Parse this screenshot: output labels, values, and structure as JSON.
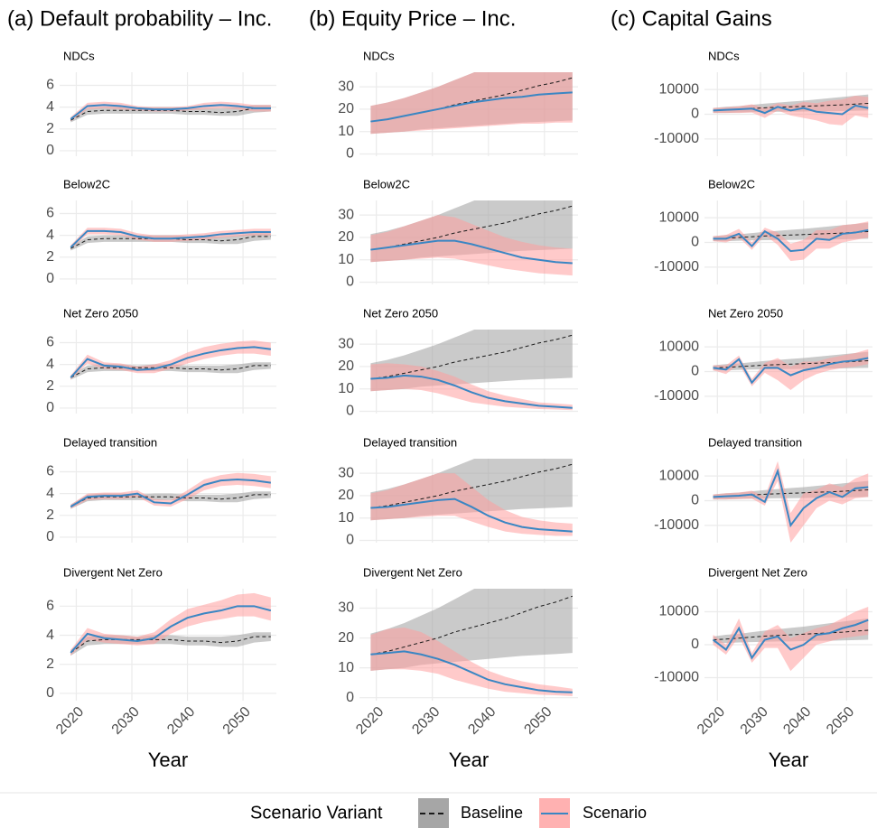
{
  "legend": {
    "title": "Scenario Variant",
    "series": [
      {
        "name": "Baseline",
        "color": "#1a1a1a",
        "fill": "#a6a6a6",
        "linestyle": "dashed"
      },
      {
        "name": "Scenario",
        "color": "#3a86c3",
        "fill": "#ff9e9e",
        "linestyle": "solid"
      }
    ]
  },
  "chart_data": [
    {
      "type": "line",
      "title": "(a)  Default probability – Inc.",
      "xlabel": "Year",
      "grid": true,
      "x": [
        2019,
        2022,
        2025,
        2028,
        2031,
        2034,
        2037,
        2040,
        2043,
        2046,
        2049,
        2052,
        2055
      ],
      "xlim": [
        2017,
        2056
      ],
      "xticks": [
        2020,
        2030,
        2040,
        2050
      ],
      "ylim": [
        -0.5,
        7.2
      ],
      "yticks": [
        0,
        2,
        4,
        6
      ],
      "baseline": {
        "values": [
          2.8,
          3.6,
          3.7,
          3.7,
          3.7,
          3.7,
          3.7,
          3.6,
          3.6,
          3.5,
          3.6,
          3.9,
          3.9
        ],
        "lower": [
          2.6,
          3.3,
          3.4,
          3.4,
          3.4,
          3.4,
          3.4,
          3.3,
          3.3,
          3.2,
          3.2,
          3.5,
          3.6
        ],
        "upper": [
          3.0,
          3.9,
          4.0,
          4.0,
          3.9,
          4.0,
          4.0,
          3.9,
          3.9,
          3.9,
          4.0,
          4.2,
          4.2
        ]
      },
      "panels": [
        {
          "facet": "NDCs",
          "values": [
            2.9,
            4.1,
            4.2,
            4.1,
            3.9,
            3.8,
            3.8,
            3.9,
            4.1,
            4.2,
            4.1,
            3.9,
            3.9
          ],
          "lower": [
            2.7,
            3.8,
            3.9,
            3.8,
            3.7,
            3.6,
            3.6,
            3.7,
            3.8,
            3.9,
            3.8,
            3.6,
            3.6
          ],
          "upper": [
            3.1,
            4.4,
            4.5,
            4.4,
            4.1,
            4.0,
            4.0,
            4.1,
            4.4,
            4.5,
            4.4,
            4.2,
            4.2
          ]
        },
        {
          "facet": "Below2C",
          "values": [
            2.9,
            4.4,
            4.4,
            4.3,
            3.9,
            3.7,
            3.7,
            3.8,
            3.9,
            4.1,
            4.2,
            4.3,
            4.3
          ],
          "lower": [
            2.7,
            4.1,
            4.1,
            4.0,
            3.6,
            3.4,
            3.4,
            3.5,
            3.6,
            3.8,
            3.9,
            4.0,
            4.0
          ],
          "upper": [
            3.1,
            4.7,
            4.7,
            4.6,
            4.2,
            4.0,
            4.0,
            4.1,
            4.2,
            4.4,
            4.5,
            4.6,
            4.6
          ]
        },
        {
          "facet": "Net Zero 2050",
          "values": [
            2.8,
            4.5,
            3.9,
            3.8,
            3.5,
            3.6,
            4.0,
            4.6,
            5.0,
            5.3,
            5.5,
            5.6,
            5.4
          ],
          "lower": [
            2.6,
            4.1,
            3.6,
            3.5,
            3.2,
            3.2,
            3.6,
            4.1,
            4.5,
            4.8,
            5.0,
            5.0,
            4.8
          ],
          "upper": [
            3.0,
            4.9,
            4.2,
            4.1,
            3.8,
            4.0,
            4.4,
            5.1,
            5.6,
            5.9,
            6.1,
            6.2,
            6.0
          ]
        },
        {
          "facet": "Delayed transition",
          "values": [
            2.8,
            3.7,
            3.8,
            3.8,
            4.0,
            3.2,
            3.1,
            3.9,
            4.8,
            5.2,
            5.3,
            5.2,
            5.0
          ],
          "lower": [
            2.6,
            3.4,
            3.5,
            3.5,
            3.7,
            2.9,
            2.8,
            3.5,
            4.3,
            4.7,
            4.8,
            4.7,
            4.5
          ],
          "upper": [
            3.0,
            4.0,
            4.1,
            4.1,
            4.3,
            3.5,
            3.4,
            4.3,
            5.3,
            5.7,
            5.9,
            5.8,
            5.6
          ]
        },
        {
          "facet": "Divergent Net Zero",
          "values": [
            2.8,
            4.1,
            3.8,
            3.7,
            3.6,
            3.8,
            4.6,
            5.2,
            5.5,
            5.7,
            6.0,
            6.0,
            5.7
          ],
          "lower": [
            2.6,
            3.7,
            3.5,
            3.4,
            3.3,
            3.4,
            4.1,
            4.6,
            4.9,
            5.1,
            5.3,
            5.3,
            5.0
          ],
          "upper": [
            3.0,
            4.5,
            4.1,
            4.0,
            3.9,
            4.2,
            5.1,
            5.8,
            6.1,
            6.4,
            6.8,
            6.9,
            6.6
          ]
        }
      ]
    },
    {
      "type": "line",
      "title": "(b)  Equity Price – Inc.",
      "xlabel": "Year",
      "grid": true,
      "x": [
        2019,
        2022,
        2025,
        2028,
        2031,
        2034,
        2037,
        2040,
        2043,
        2046,
        2049,
        2052,
        2055
      ],
      "xlim": [
        2017,
        2056
      ],
      "xticks": [
        2020,
        2030,
        2040,
        2050
      ],
      "ylim": [
        -1,
        36.5
      ],
      "yticks": [
        0,
        10,
        20,
        30
      ],
      "baseline": {
        "values": [
          14.5,
          15.5,
          17,
          18.5,
          20,
          22,
          23.5,
          25,
          26.5,
          28.5,
          30.5,
          32,
          34
        ],
        "lower": [
          9,
          9.5,
          10,
          11,
          11.5,
          12,
          12.5,
          13,
          13.5,
          14,
          14.3,
          14.6,
          15
        ],
        "upper": [
          21.5,
          23,
          25,
          27.5,
          30,
          33,
          36,
          39,
          41,
          41,
          41,
          41,
          41
        ]
      },
      "panels": [
        {
          "facet": "NDCs",
          "values": [
            14.5,
            15.5,
            17,
            18.5,
            20,
            21.5,
            23,
            24,
            25,
            25.5,
            26.5,
            27,
            27.5
          ],
          "lower": [
            9,
            9.5,
            10,
            10.5,
            11,
            11.5,
            12,
            12.5,
            13,
            13.5,
            13.5,
            14,
            14
          ],
          "upper": [
            21.5,
            23,
            25,
            27.5,
            30,
            33,
            36,
            39,
            41,
            41,
            41,
            41,
            41
          ]
        },
        {
          "facet": "Below2C",
          "values": [
            14.5,
            15.5,
            16.5,
            17.5,
            18.5,
            18.5,
            17,
            15,
            13,
            11,
            10,
            9,
            8.5
          ],
          "lower": [
            9,
            9.5,
            10,
            10.5,
            11,
            10.5,
            9,
            7.5,
            6,
            5,
            4,
            3.5,
            3
          ],
          "upper": [
            21,
            22.5,
            25,
            27.5,
            30,
            29,
            26,
            23,
            20,
            18,
            16.5,
            15.5,
            15
          ]
        },
        {
          "facet": "Net Zero 2050",
          "values": [
            14.5,
            15,
            16,
            15.5,
            14,
            11.5,
            8.5,
            6,
            4.5,
            3.5,
            2.5,
            2,
            1.5
          ],
          "lower": [
            9,
            9.5,
            10,
            9.5,
            8,
            6,
            4,
            3,
            2,
            1.5,
            1,
            0.8,
            0.5
          ],
          "upper": [
            21,
            21.5,
            21,
            20,
            18,
            15.5,
            12,
            9,
            7,
            5.5,
            4,
            3.5,
            3
          ]
        },
        {
          "facet": "Delayed transition",
          "values": [
            14.5,
            15,
            16,
            17,
            18,
            18.5,
            15,
            11,
            8,
            6,
            5,
            4.5,
            4
          ],
          "lower": [
            9,
            9.5,
            10,
            10.5,
            11,
            11,
            8.5,
            6,
            4,
            3,
            2.5,
            2,
            2
          ],
          "upper": [
            21,
            22.5,
            25,
            27.5,
            30,
            30,
            24,
            18,
            13.5,
            10.5,
            9,
            8,
            7.5
          ]
        },
        {
          "facet": "Divergent Net Zero",
          "values": [
            14.5,
            15,
            15.5,
            14.5,
            13,
            11,
            8.5,
            6,
            4.5,
            3.5,
            2.5,
            2,
            1.8
          ],
          "lower": [
            9,
            9.5,
            9.5,
            9,
            8,
            6,
            4.5,
            3,
            2,
            1.5,
            1,
            0.8,
            0.5
          ],
          "upper": [
            21,
            23,
            23.5,
            22,
            19,
            15.5,
            12,
            9,
            7,
            5.5,
            4.5,
            3.8,
            3
          ]
        }
      ]
    },
    {
      "type": "line",
      "title": "(c)  Capital Gains",
      "xlabel": "Year",
      "grid": true,
      "x": [
        2019,
        2022,
        2025,
        2028,
        2031,
        2034,
        2037,
        2040,
        2043,
        2046,
        2049,
        2052,
        2055
      ],
      "xlim": [
        2017,
        2056
      ],
      "xticks": [
        2020,
        2030,
        2040,
        2050
      ],
      "ylim": [
        -17000,
        17000
      ],
      "yticks": [
        -10000,
        0,
        10000
      ],
      "baseline": {
        "values": [
          1500,
          1700,
          2000,
          2300,
          2600,
          2800,
          3000,
          3200,
          3400,
          3600,
          3800,
          4100,
          4400
        ],
        "lower": [
          500,
          500,
          700,
          800,
          900,
          1000,
          1000,
          1100,
          1200,
          1200,
          1300,
          1400,
          1500
        ],
        "upper": [
          2500,
          3000,
          3300,
          3800,
          4300,
          4700,
          5100,
          5500,
          6000,
          6500,
          7000,
          7500,
          8000
        ]
      },
      "panels": [
        {
          "facet": "NDCs",
          "values": [
            1500,
            1800,
            2000,
            2300,
            500,
            3000,
            1500,
            2500,
            1000,
            500,
            0,
            3500,
            2500
          ],
          "lower": [
            500,
            500,
            500,
            700,
            -1500,
            1500,
            -500,
            -1500,
            -2500,
            -4000,
            -4500,
            -500,
            -1500
          ],
          "upper": [
            2500,
            2800,
            3200,
            4000,
            2500,
            4500,
            3500,
            5000,
            4500,
            5500,
            6000,
            7500,
            7000
          ]
        },
        {
          "facet": "Below2C",
          "values": [
            1500,
            1500,
            3500,
            -1500,
            4500,
            1500,
            -3500,
            -3000,
            1500,
            1000,
            3500,
            4000,
            5000
          ],
          "lower": [
            500,
            0,
            2000,
            -3000,
            3000,
            -1000,
            -7500,
            -7000,
            -2500,
            -2500,
            0,
            1000,
            2000
          ],
          "upper": [
            2500,
            3000,
            5500,
            0,
            6000,
            4000,
            -500,
            1000,
            5000,
            5000,
            7000,
            7500,
            8500
          ]
        },
        {
          "facet": "Net Zero 2050",
          "values": [
            1500,
            800,
            5000,
            -4500,
            1500,
            1500,
            -1500,
            500,
            1500,
            3000,
            4000,
            4500,
            5500
          ],
          "lower": [
            500,
            -1000,
            3000,
            -6000,
            -500,
            -3500,
            -7500,
            -3500,
            -1000,
            500,
            1500,
            2000,
            3000
          ],
          "upper": [
            2500,
            2500,
            6500,
            -3000,
            3500,
            5500,
            2000,
            4000,
            4000,
            5500,
            6500,
            7500,
            9000
          ]
        },
        {
          "facet": "Delayed transition",
          "values": [
            1500,
            1800,
            2000,
            2500,
            -500,
            12000,
            -10000,
            -3000,
            1000,
            3500,
            1500,
            5000,
            5500
          ],
          "lower": [
            500,
            500,
            700,
            800,
            -2000,
            8000,
            -17000,
            -10000,
            -3000,
            0,
            -1500,
            1000,
            1500
          ],
          "upper": [
            2500,
            3000,
            3300,
            4000,
            1500,
            16000,
            -5000,
            3000,
            4500,
            7000,
            5500,
            9000,
            11000
          ]
        },
        {
          "facet": "Divergent Net Zero",
          "values": [
            1500,
            -1500,
            5000,
            -4000,
            1500,
            2500,
            -1500,
            0,
            3000,
            3500,
            5000,
            6000,
            7500
          ],
          "lower": [
            0,
            -3000,
            2500,
            -5500,
            -1000,
            -1000,
            -8000,
            -4000,
            0,
            1000,
            2000,
            2500,
            3000
          ],
          "upper": [
            3000,
            0,
            8000,
            -2500,
            4000,
            6000,
            2000,
            3500,
            5000,
            6000,
            8000,
            10000,
            11500
          ]
        }
      ]
    }
  ]
}
